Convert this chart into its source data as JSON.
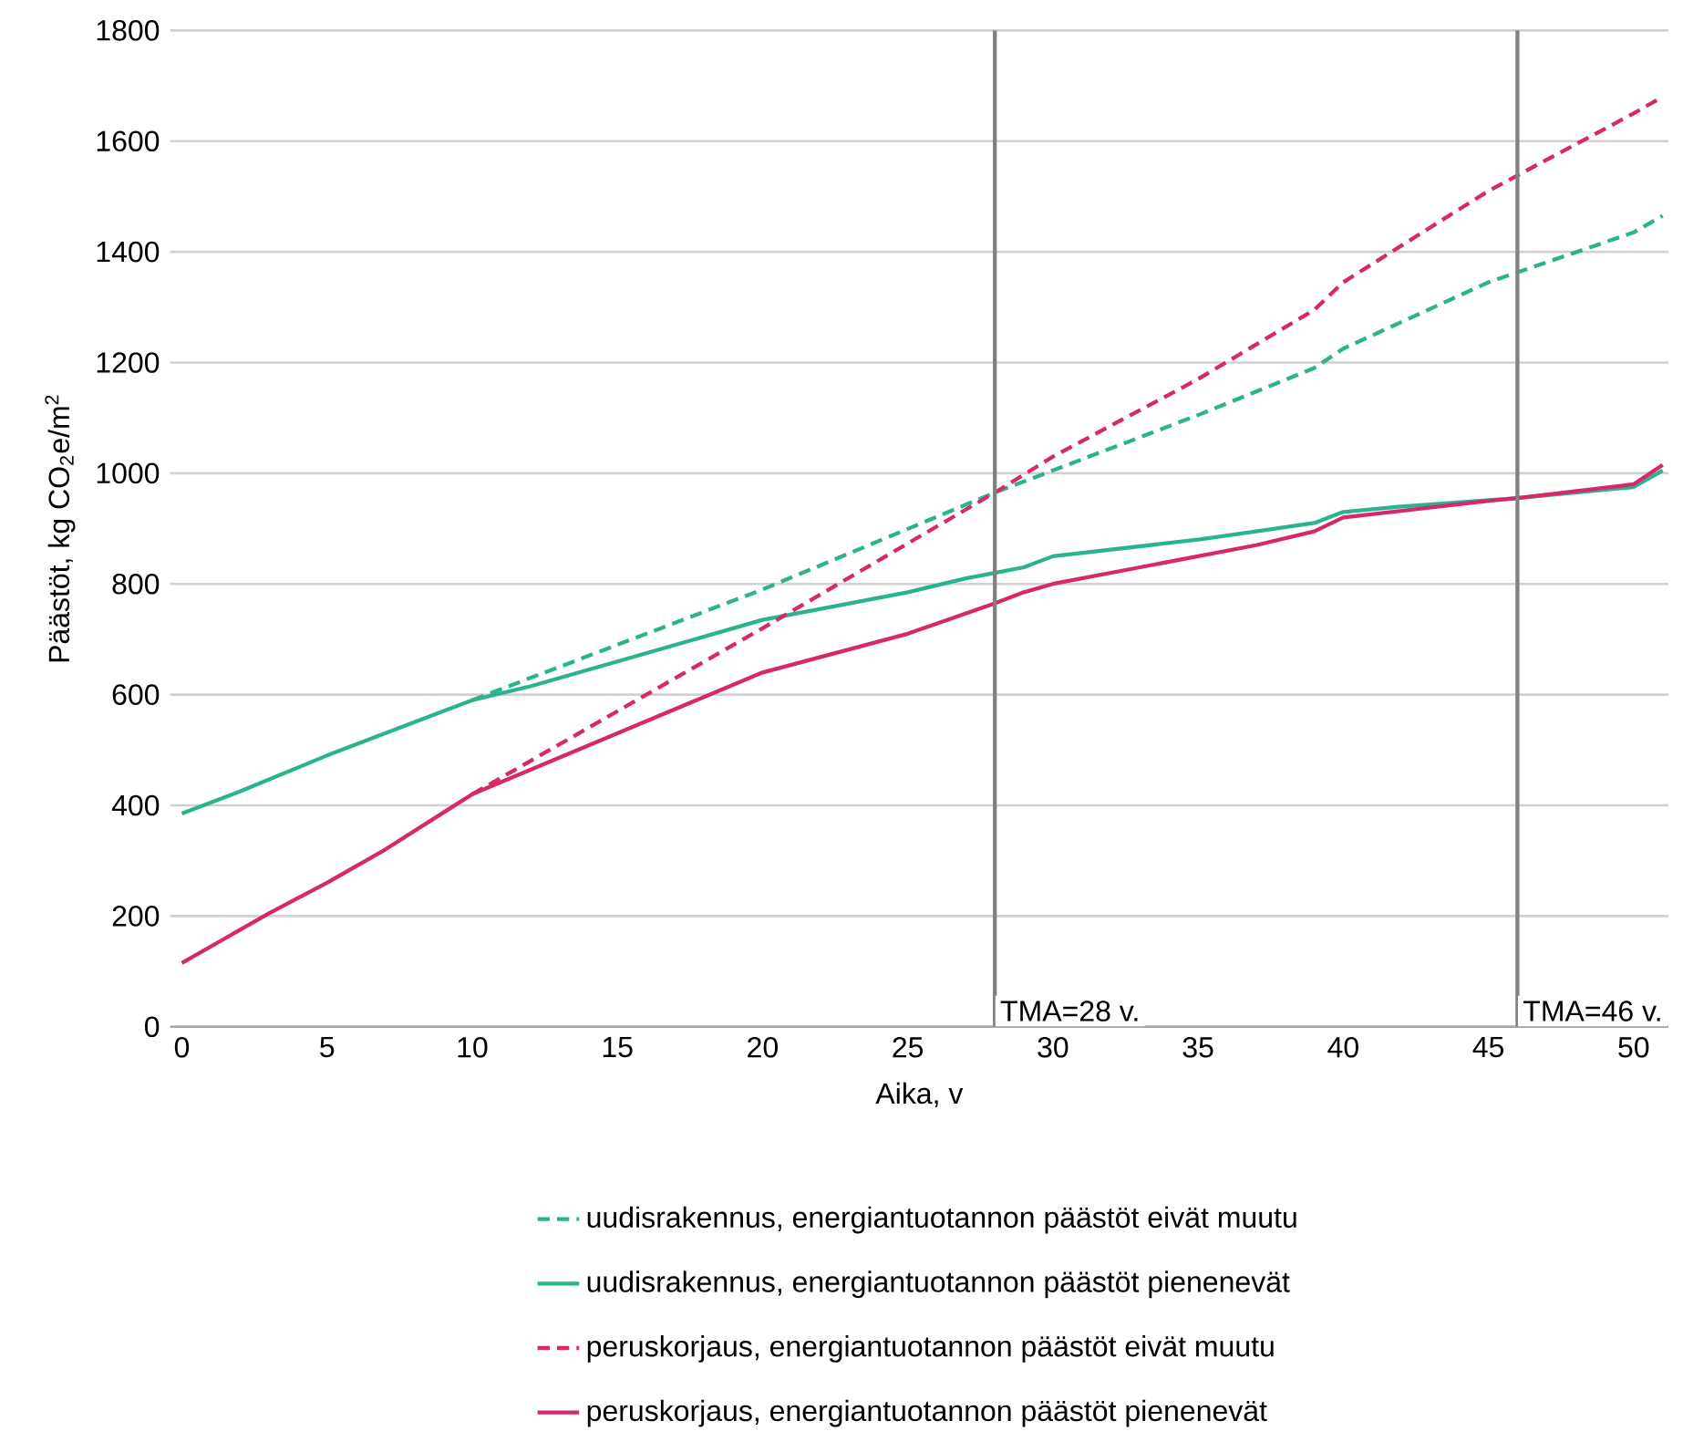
{
  "chart_data": {
    "type": "line",
    "xlabel": "Aika, v",
    "ylabel": "Päästöt, kg CO$_{2}$e/m$^{2}$",
    "xlim": [
      -0.4,
      51.2
    ],
    "ylim": [
      0,
      1800
    ],
    "xticks": [
      0,
      5,
      10,
      15,
      20,
      25,
      30,
      35,
      40,
      45,
      50
    ],
    "yticks": [
      0,
      200,
      400,
      600,
      800,
      1000,
      1200,
      1400,
      1600,
      1800
    ],
    "grid": "y",
    "legend": "bottom",
    "marker": "none",
    "series": [
      {
        "name": "uudisrakennus, energiantuotannon päästöt eivät muutu",
        "color": "#2bb38f",
        "line_style": "dashed",
        "x": [
          10,
          20,
          28,
          30,
          35,
          39,
          40,
          45,
          50,
          51
        ],
        "values": [
          590,
          790,
          965,
          1005,
          1105,
          1190,
          1225,
          1345,
          1435,
          1465
        ]
      },
      {
        "name": "uudisrakennus, energiantuotannon päästöt pienenevät",
        "color": "#2bb38f",
        "line_style": "solid",
        "x": [
          0,
          2,
          5,
          7,
          9,
          10,
          12,
          15,
          17,
          20,
          22,
          25,
          27,
          28,
          29,
          30,
          35,
          37,
          39,
          40,
          42,
          45,
          46,
          50,
          51
        ],
        "values": [
          385,
          425,
          490,
          530,
          570,
          590,
          615,
          660,
          690,
          735,
          755,
          785,
          810,
          820,
          830,
          850,
          880,
          895,
          910,
          930,
          940,
          null,
          955,
          975,
          1005
        ]
      },
      {
        "name": "peruskorjaus, energiantuotannon päästöt eivät muutu",
        "color": "#d6286a",
        "line_style": "dashed",
        "x": [
          10,
          20,
          28,
          30,
          35,
          39,
          40,
          45,
          50,
          51
        ],
        "values": [
          420,
          720,
          965,
          1030,
          1170,
          1295,
          1345,
          1510,
          1650,
          1680
        ]
      },
      {
        "name": "peruskorjaus, energiantuotannon päästöt pienenevät",
        "color": "#d6286a",
        "line_style": "solid",
        "x": [
          0,
          3,
          5,
          7,
          10,
          15,
          20,
          25,
          28,
          29,
          30,
          33,
          35,
          37,
          39,
          40,
          45,
          46,
          50,
          51
        ],
        "values": [
          115,
          205,
          260,
          320,
          420,
          530,
          640,
          710,
          765,
          785,
          800,
          830,
          850,
          870,
          895,
          920,
          950,
          955,
          980,
          1015
        ]
      }
    ],
    "ref_lines": [
      {
        "axis": "x",
        "value": 28,
        "label": "TMA=28 v.",
        "color": "#808080"
      },
      {
        "axis": "x",
        "value": 46,
        "label": "TMA=46 v.",
        "color": "#808080"
      }
    ]
  }
}
